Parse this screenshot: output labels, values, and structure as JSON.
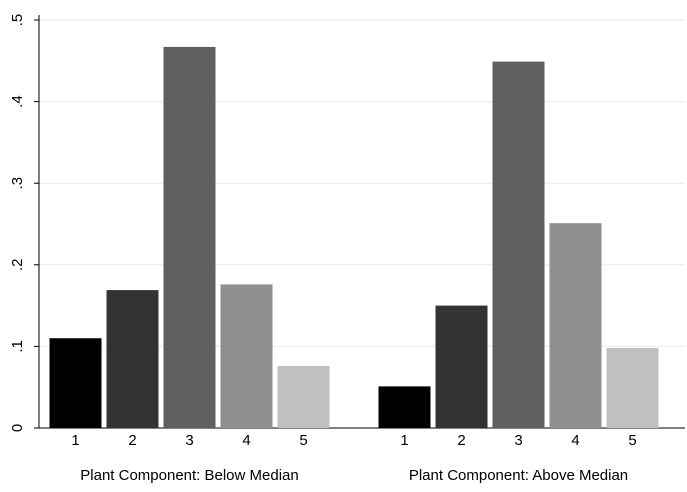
{
  "chart_data": {
    "type": "bar",
    "categories": [
      "Plant Component: Below Median",
      "Plant Component: Above Median"
    ],
    "series": [
      {
        "name": "1",
        "color": "#000000",
        "values": [
          0.11,
          0.051
        ]
      },
      {
        "name": "2",
        "color": "#333333",
        "values": [
          0.169,
          0.15
        ]
      },
      {
        "name": "3",
        "color": "#5f5f5f",
        "values": [
          0.467,
          0.449
        ]
      },
      {
        "name": "4",
        "color": "#8f8f8f",
        "values": [
          0.176,
          0.251
        ]
      },
      {
        "name": "5",
        "color": "#c0c0c0",
        "values": [
          0.076,
          0.098
        ]
      }
    ],
    "ylim": [
      0,
      0.5
    ],
    "yticks": [
      0,
      {
        "value": 0.1,
        "label": ".1"
      },
      {
        "value": 0.2,
        "label": ".2"
      },
      {
        "value": 0.3,
        "label": ".3"
      },
      {
        "value": 0.4,
        "label": ".4"
      },
      {
        "value": 0.5,
        "label": ".5"
      }
    ],
    "grid": true
  }
}
